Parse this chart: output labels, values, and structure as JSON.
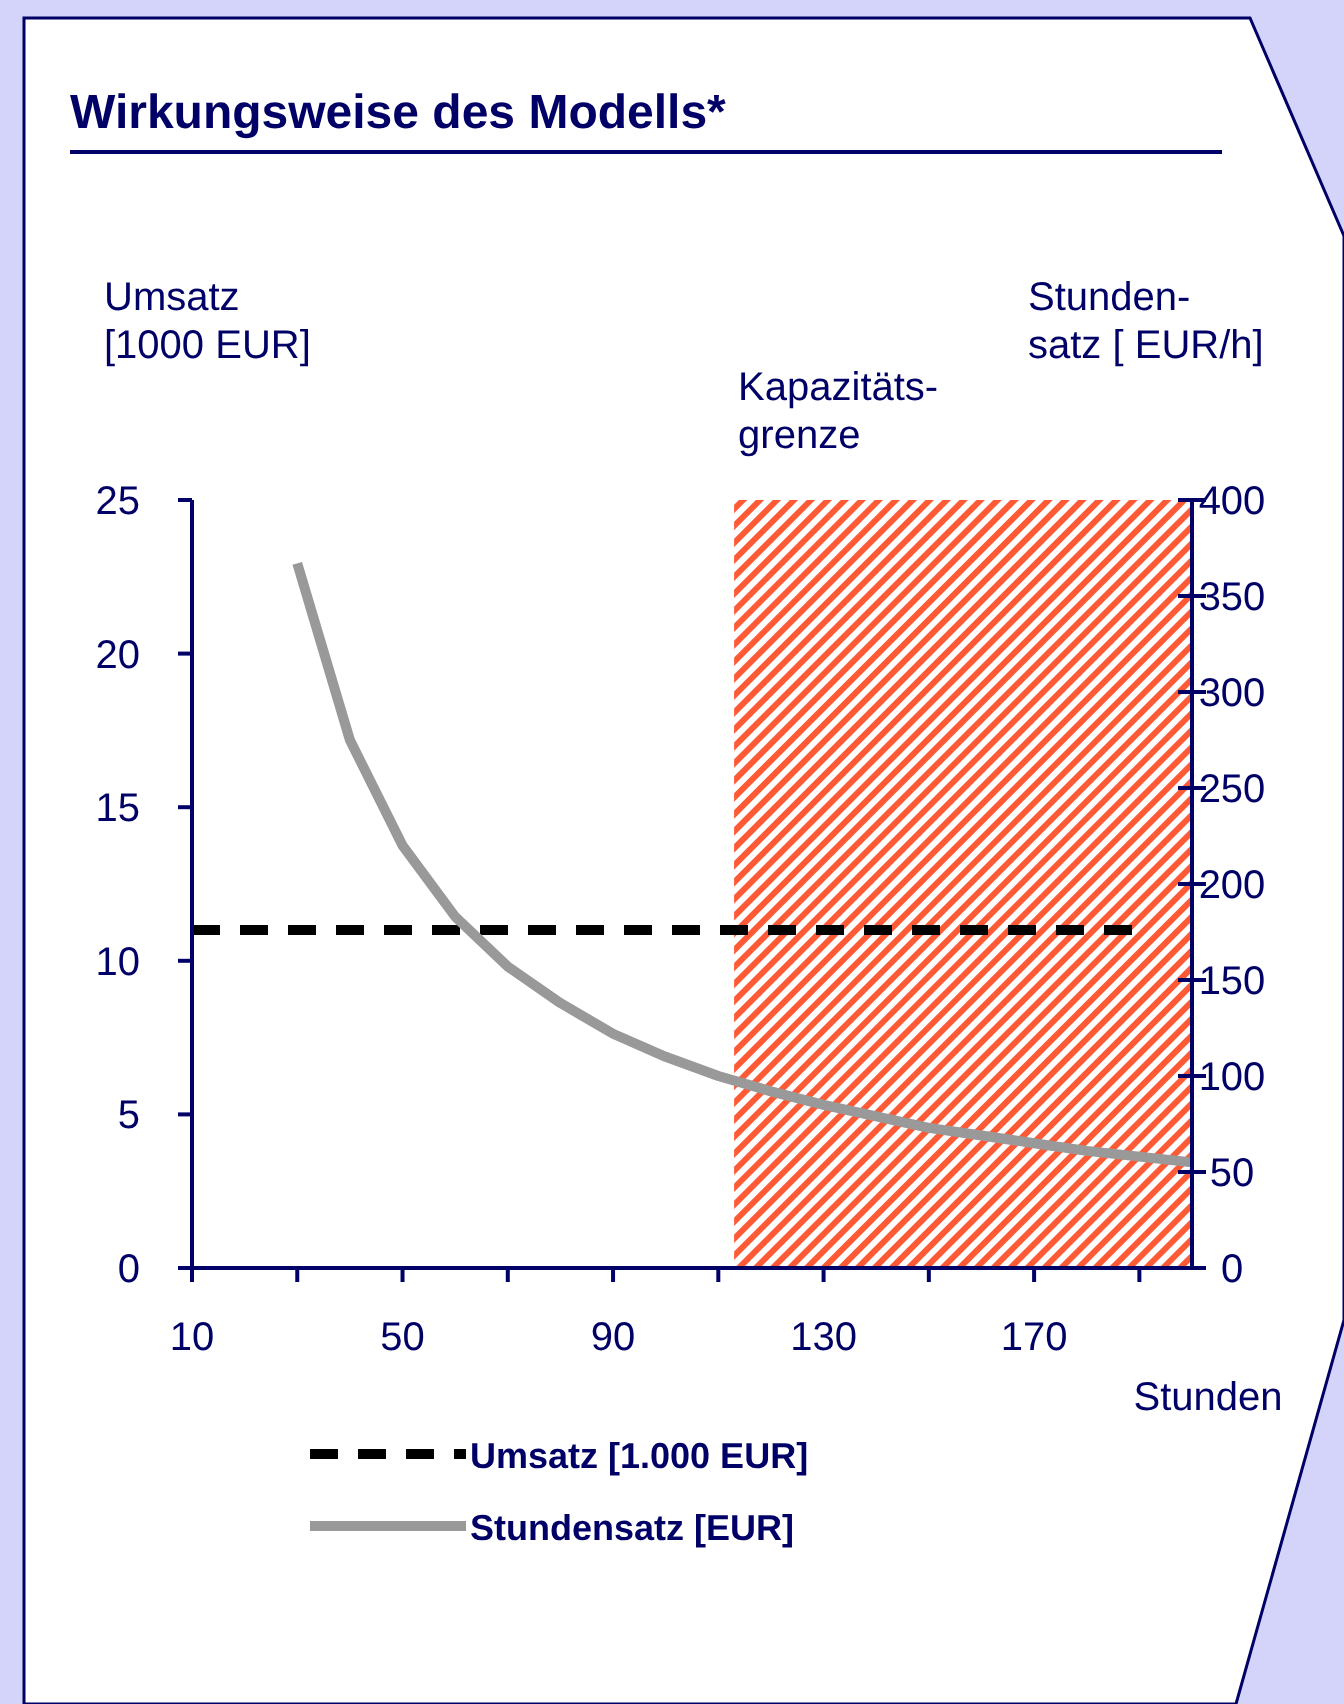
{
  "chart_data": {
    "type": "line",
    "title": "Wirkungsweise des Modells*",
    "xlabel": "Stunden",
    "ylabel": "Umsatz\n[1000 EUR]",
    "y2label": "Stunden-\nsatz [ EUR/h]",
    "xlim": [
      10,
      200
    ],
    "xticks": [
      10,
      {
        "value": 30,
        "label": null
      },
      50,
      {
        "value": 70,
        "label": null
      },
      90,
      {
        "value": 110,
        "label": null
      },
      130,
      {
        "value": 150,
        "label": null
      },
      170,
      {
        "value": 190,
        "label": null
      }
    ],
    "ylim": [
      0,
      25
    ],
    "yticks": [
      0,
      5,
      10,
      15,
      20,
      25
    ],
    "y2lim": [
      0,
      400
    ],
    "y2ticks": [
      0,
      50,
      100,
      150,
      200,
      250,
      300,
      350,
      400
    ],
    "series": [
      {
        "name": "Umsatz [1.000 EUR]",
        "color": "#000000",
        "line_style": "dashed",
        "x": [
          10,
          190
        ],
        "values": [
          11,
          11
        ]
      },
      {
        "name": "Stundensatz [EUR]",
        "color": "#999999",
        "line_style": "solid",
        "axis": "y2",
        "x": [
          30,
          40,
          50,
          60,
          70,
          80,
          90,
          100,
          110,
          120,
          130,
          140,
          150,
          160,
          170,
          180,
          190,
          200
        ],
        "values": [
          367,
          275,
          220,
          183,
          157,
          138,
          122,
          110,
          100,
          92,
          85,
          79,
          73,
          69,
          65,
          61,
          58,
          55
        ]
      }
    ],
    "bands": [
      {
        "axis": "x",
        "from": 113,
        "to": 200,
        "label": "Kapazitäts-\ngrenze",
        "color": "#ff5a36"
      }
    ],
    "grid": false,
    "legend": "bottom",
    "marker": "none"
  }
}
